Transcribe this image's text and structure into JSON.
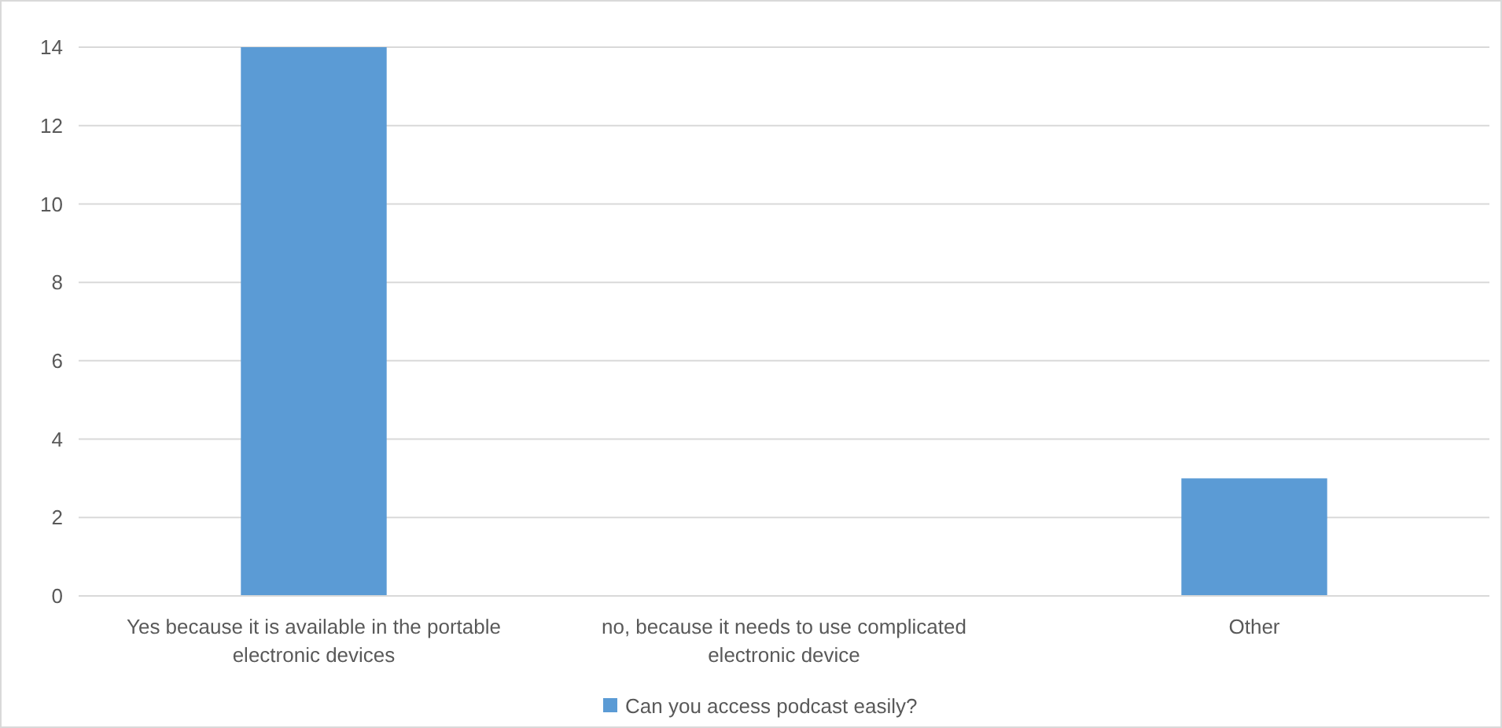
{
  "chart_data": {
    "type": "bar",
    "categories": [
      "Yes because it is available in the portable electronic devices",
      "no, because it needs to use complicated electronic device",
      "Other"
    ],
    "series": [
      {
        "name": "Can you access podcast easily?",
        "color": "#5b9bd5",
        "values": [
          14,
          0,
          3
        ]
      }
    ],
    "ylim": [
      0,
      14
    ],
    "yticks": [
      0,
      2,
      4,
      6,
      8,
      10,
      12,
      14
    ],
    "grid": "y",
    "legend": "bottom"
  }
}
